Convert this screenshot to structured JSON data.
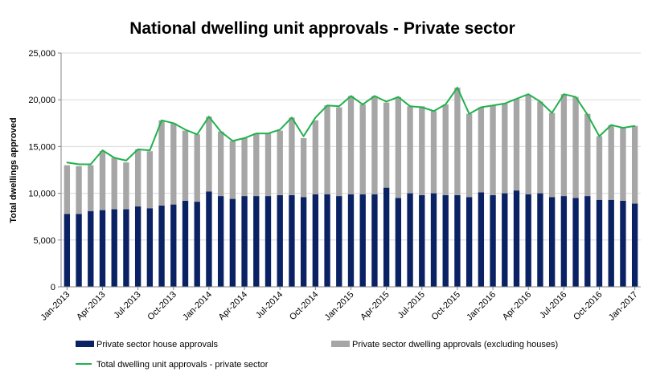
{
  "chart_data": {
    "type": "bar",
    "title": "National dwelling unit approvals - Private sector",
    "ylabel": "Total dwellings approved",
    "xlabel": "",
    "ylim": [
      0,
      25000
    ],
    "yticks": [
      "0",
      "5,000",
      "10,000",
      "15,000",
      "20,000",
      "25,000"
    ],
    "ytick_values": [
      0,
      5000,
      10000,
      15000,
      20000,
      25000
    ],
    "grid": "horizontal",
    "legend_position": "bottom",
    "categories": [
      "Jan-2013",
      "Feb-2013",
      "Mar-2013",
      "Apr-2013",
      "May-2013",
      "Jun-2013",
      "Jul-2013",
      "Aug-2013",
      "Sep-2013",
      "Oct-2013",
      "Nov-2013",
      "Dec-2013",
      "Jan-2014",
      "Feb-2014",
      "Mar-2014",
      "Apr-2014",
      "May-2014",
      "Jun-2014",
      "Jul-2014",
      "Aug-2014",
      "Sep-2014",
      "Oct-2014",
      "Nov-2014",
      "Dec-2014",
      "Jan-2015",
      "Feb-2015",
      "Mar-2015",
      "Apr-2015",
      "May-2015",
      "Jun-2015",
      "Jul-2015",
      "Aug-2015",
      "Sep-2015",
      "Oct-2015",
      "Nov-2015",
      "Dec-2015",
      "Jan-2016",
      "Feb-2016",
      "Mar-2016",
      "Apr-2016",
      "May-2016",
      "Jun-2016",
      "Jul-2016",
      "Aug-2016",
      "Sep-2016",
      "Oct-2016",
      "Nov-2016",
      "Dec-2016",
      "Jan-2017"
    ],
    "tick_labels": [
      "Jan-2013",
      "Apr-2013",
      "Jul-2013",
      "Oct-2013",
      "Jan-2014",
      "Apr-2014",
      "Jul-2014",
      "Oct-2014",
      "Jan-2015",
      "Apr-2015",
      "Jul-2015",
      "Oct-2015",
      "Jan-2016",
      "Apr-2016",
      "Jul-2016",
      "Oct-2016",
      "Jan-2017"
    ],
    "series": [
      {
        "name": "Private sector house approvals",
        "kind": "bar",
        "color": "#0a2263",
        "values": [
          7800,
          7800,
          8100,
          8200,
          8300,
          8300,
          8600,
          8400,
          8700,
          8800,
          9200,
          9100,
          10200,
          9700,
          9400,
          9700,
          9700,
          9700,
          9800,
          9800,
          9600,
          9900,
          9900,
          9700,
          9900,
          9900,
          9900,
          10600,
          9500,
          10000,
          9800,
          10000,
          9800,
          9800,
          9600,
          10100,
          9800,
          10000,
          10300,
          9900,
          10000,
          9600,
          9700,
          9500,
          9700,
          9300,
          9300,
          9200,
          8900
        ]
      },
      {
        "name": "Private sector dwelling approvals (excluding houses)",
        "kind": "bar",
        "color": "#a6a6a6",
        "values": [
          5200,
          5100,
          4900,
          6300,
          5500,
          5000,
          6100,
          6100,
          9100,
          8700,
          7500,
          7200,
          8000,
          6900,
          6200,
          6200,
          6700,
          6700,
          6900,
          8300,
          6300,
          7900,
          9500,
          9500,
          10500,
          9600,
          10500,
          9100,
          10800,
          9300,
          9500,
          8800,
          9700,
          11500,
          8900,
          9100,
          9600,
          9600,
          9800,
          10600,
          9800,
          9000,
          10900,
          10800,
          8800,
          6800,
          8000,
          7800,
          8300
        ]
      },
      {
        "name": "Total dwelling unit approvals - private sector",
        "kind": "line",
        "color": "#21b14c",
        "values": [
          13300,
          13100,
          13100,
          14600,
          13800,
          13500,
          14700,
          14600,
          17800,
          17500,
          16800,
          16300,
          18200,
          16600,
          15600,
          15900,
          16400,
          16400,
          16800,
          18100,
          16100,
          18100,
          19400,
          19300,
          20400,
          19500,
          20400,
          19800,
          20300,
          19300,
          19200,
          18800,
          19500,
          21300,
          18500,
          19200,
          19400,
          19600,
          20100,
          20600,
          19800,
          18600,
          20600,
          20300,
          18400,
          16100,
          17300,
          17000,
          17200
        ]
      }
    ]
  }
}
